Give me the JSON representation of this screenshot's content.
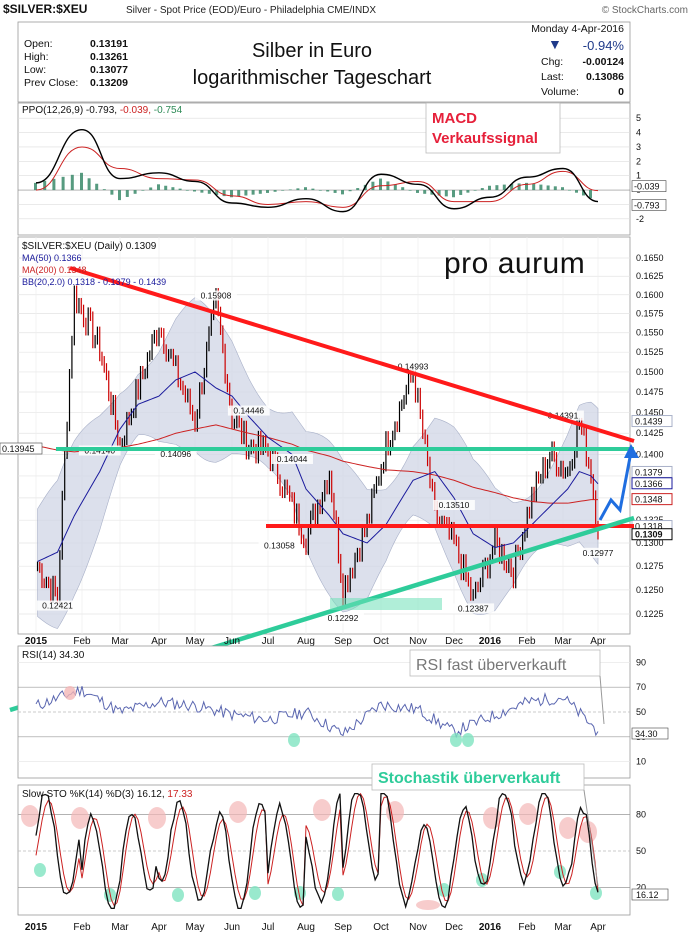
{
  "header": {
    "symbol": "$SILVER:$XEU",
    "description": "Silver - Spot Price (EOD)/Euro - Philadelphia CME/INDX",
    "credit": "© StockCharts.com",
    "date": "Monday 4-Apr-2016",
    "change_pct": "-0.94%",
    "change_label": "Chg:",
    "change": "-0.00124",
    "last_label": "Last:",
    "last": "0.13086",
    "volume_label": "Volume:",
    "volume": "0",
    "ohlc": [
      {
        "label": "Open:",
        "value": "0.13191"
      },
      {
        "label": "High:",
        "value": "0.13261"
      },
      {
        "label": "Low:",
        "value": "0.13077"
      },
      {
        "label": "Prev Close:",
        "value": "0.13209"
      }
    ],
    "title_line1": "Silber in Euro",
    "title_line2": "logarithmischer Tageschart",
    "brand": "pro aurum"
  },
  "colors": {
    "price_up": "#000000",
    "price_down": "#cc0000",
    "ma50": "#1a1a9c",
    "ma200": "#cc2222",
    "bband_fill": "#d0d6e6",
    "resistance": "#ff1a1a",
    "support": "#2ecc9a",
    "annotation": "#e6203a",
    "forecast": "#1f6ee0",
    "rsi_line": "#5a66b0",
    "sto_k": "#111111",
    "sto_d": "#cc2222",
    "macd_hist": "#3a8a6a",
    "ppo_line": "#000000",
    "ppo_signal": "#cc2222"
  },
  "chart_data": [
    {
      "type": "line",
      "panel": "ppo",
      "legend": "PPO(12,26,9) -0.793, -0.039, -0.754",
      "legend_parts": [
        "PPO(12,26,9)",
        " -0.793,",
        " -0.039,",
        " -0.754"
      ],
      "y_ticks": [
        "5",
        "4",
        "3",
        "2",
        "1",
        "0",
        "-1",
        "-2"
      ],
      "ylim": [
        -2.5,
        5.5
      ],
      "x": [
        "2015-01",
        "2015-02",
        "2015-03",
        "2015-04",
        "2015-05",
        "2015-06",
        "2015-07",
        "2015-08",
        "2015-09",
        "2015-10",
        "2015-11",
        "2015-12",
        "2016-01",
        "2016-02",
        "2016-03",
        "2016-04"
      ],
      "series": [
        {
          "name": "PPO",
          "values": [
            0.5,
            4.2,
            0.8,
            1.2,
            0.6,
            -0.9,
            -1.2,
            -0.6,
            -1.5,
            1.1,
            0.4,
            -1.3,
            -0.5,
            0.9,
            1.5,
            -0.8
          ]
        },
        {
          "name": "Signal",
          "values": [
            0.0,
            3.0,
            1.5,
            0.8,
            0.7,
            -0.4,
            -1.0,
            -0.8,
            -1.2,
            0.3,
            0.6,
            -0.8,
            -0.8,
            0.4,
            1.3,
            -0.04
          ]
        }
      ],
      "value_labels": [
        "-0.039",
        "-0.793"
      ],
      "annotation": [
        "MACD",
        "Verkaufssignal"
      ]
    },
    {
      "type": "bar",
      "subtype": "ohlc",
      "panel": "price",
      "scale": "log",
      "legend_title": "$SILVER:$XEU (Daily) 0.1309",
      "legend": [
        "MA(50) 0.1366",
        "MA(200) 0.1348",
        "BB(20,2.0) 0.1318 - 0.1379 - 0.1439"
      ],
      "y_ticks": [
        "0.1650",
        "0.1625",
        "0.1600",
        "0.1575",
        "0.1550",
        "0.1525",
        "0.1500",
        "0.1475",
        "0.1450",
        "0.1425",
        "0.1400",
        "0.1375",
        "0.1350",
        "0.1325",
        "0.1300",
        "0.1275",
        "0.1250",
        "0.1225"
      ],
      "ylim": [
        0.1212,
        0.166
      ],
      "x_ticks": [
        "2015",
        "Feb",
        "Mar",
        "Apr",
        "May",
        "Jun",
        "Jul",
        "Aug",
        "Sep",
        "Oct",
        "Nov",
        "Dec",
        "2016",
        "Feb",
        "Mar",
        "Apr"
      ],
      "x": [
        "2015-01-02",
        "2015-01-15",
        "2015-01-26",
        "2015-02-15",
        "2015-03-01",
        "2015-03-15",
        "2015-04-01",
        "2015-04-15",
        "2015-05-01",
        "2015-05-18",
        "2015-06-01",
        "2015-06-15",
        "2015-07-01",
        "2015-07-20",
        "2015-08-01",
        "2015-08-20",
        "2015-09-01",
        "2015-09-20",
        "2015-10-05",
        "2015-10-27",
        "2015-11-15",
        "2015-12-01",
        "2015-12-17",
        "2016-01-05",
        "2016-01-20",
        "2016-02-05",
        "2016-02-20",
        "2016-03-05",
        "2016-03-15",
        "2016-03-25",
        "2016-04-04"
      ],
      "values": [
        0.1275,
        0.1242,
        0.16,
        0.153,
        0.141,
        0.148,
        0.156,
        0.15,
        0.144,
        0.159,
        0.1445,
        0.141,
        0.1404,
        0.134,
        0.1306,
        0.138,
        0.125,
        0.132,
        0.141,
        0.1499,
        0.133,
        0.13,
        0.1239,
        0.13,
        0.127,
        0.135,
        0.14,
        0.138,
        0.1439,
        0.138,
        0.1309
      ],
      "ma50": [
        0.128,
        0.129,
        0.133,
        0.138,
        0.143,
        0.146,
        0.147,
        0.149,
        0.15,
        0.148,
        0.147,
        0.1445,
        0.142,
        0.14,
        0.136,
        0.133,
        0.131,
        0.13,
        0.132,
        0.137,
        0.138,
        0.135,
        0.131,
        0.1295,
        0.13,
        0.132,
        0.134,
        0.136,
        0.138,
        0.1375,
        0.1366
      ],
      "ma200": [
        0.141,
        0.1405,
        0.1403,
        0.1405,
        0.1408,
        0.1412,
        0.1418,
        0.1425,
        0.143,
        0.1435,
        0.143,
        0.1425,
        0.142,
        0.1412,
        0.1405,
        0.1398,
        0.1392,
        0.1386,
        0.1382,
        0.138,
        0.1376,
        0.137,
        0.1362,
        0.1356,
        0.135,
        0.1346,
        0.1344,
        0.1344,
        0.1346,
        0.1348,
        0.1348
      ],
      "price_labels": [
        {
          "text": "0.12421",
          "x": "2015-01-15",
          "y": 0.1242
        },
        {
          "text": "0.14140",
          "x": "2015-02-15",
          "y": 0.1414
        },
        {
          "text": "0.14096",
          "x": "2015-04-15",
          "y": 0.141
        },
        {
          "text": "0.15908",
          "x": "2015-05-18",
          "y": 0.1591
        },
        {
          "text": "0.14446",
          "x": "2015-06-15",
          "y": 0.1445
        },
        {
          "text": "0.14044",
          "x": "2015-07-20",
          "y": 0.1404
        },
        {
          "text": "0.13058",
          "x": "2015-07-10",
          "y": 0.1306
        },
        {
          "text": "0.12292",
          "x": "2015-09-01",
          "y": 0.1229
        },
        {
          "text": "0.14993",
          "x": "2015-10-27",
          "y": 0.1499
        },
        {
          "text": "0.13510",
          "x": "2015-12-01",
          "y": 0.1351
        },
        {
          "text": "0.12387",
          "x": "2015-12-17",
          "y": 0.1239
        },
        {
          "text": "0.14391",
          "x": "2016-03-01",
          "y": 0.1439
        },
        {
          "text": "0.12977",
          "x": "2016-04-01",
          "y": 0.1298
        }
      ],
      "legend_values": [
        "0.1379",
        "0.1439"
      ],
      "left_label": "0.13945",
      "right_labels": [
        "0.1439",
        "0.1379",
        "0.1366",
        "0.1348",
        "0.1318",
        "0.1309"
      ]
    },
    {
      "type": "line",
      "panel": "rsi",
      "legend": "RSI(14) 34.30",
      "y_ticks": [
        "90",
        "70",
        "50",
        "30",
        "10"
      ],
      "ylim": [
        0,
        100
      ],
      "x": [
        "2015-01",
        "2015-02",
        "2015-03",
        "2015-04",
        "2015-05",
        "2015-06",
        "2015-07",
        "2015-08",
        "2015-09",
        "2015-10",
        "2015-11",
        "2015-12",
        "2016-01",
        "2016-02",
        "2016-03",
        "2016-04"
      ],
      "values": [
        55,
        68,
        50,
        58,
        55,
        48,
        44,
        50,
        32,
        56,
        52,
        34,
        46,
        58,
        62,
        34.3
      ],
      "value_label": "34.30",
      "annotation": "RSI fast überverkauft"
    },
    {
      "type": "line",
      "panel": "stochastic",
      "legend": "Slow STO %K(14) %D(3) 16.12, 17.33",
      "legend_parts": [
        "Slow STO %K(14) %D(3) 16.12,",
        " 17.33"
      ],
      "y_ticks": [
        "80",
        "50",
        "20"
      ],
      "ylim": [
        0,
        100
      ],
      "x_ticks": [
        "2015",
        "Feb",
        "Mar",
        "Apr",
        "May",
        "Jun",
        "Jul",
        "Aug",
        "Sep",
        "Oct",
        "Nov",
        "Dec",
        "2016",
        "Feb",
        "Mar",
        "Apr"
      ],
      "x": [
        "2015-01",
        "2015-02",
        "2015-03",
        "2015-04",
        "2015-05",
        "2015-06",
        "2015-07",
        "2015-08",
        "2015-09",
        "2015-10",
        "2015-11",
        "2015-12",
        "2016-01",
        "2016-02",
        "2016-03",
        "2016-04"
      ],
      "series": [
        {
          "name": "%K",
          "values": [
            85,
            30,
            15,
            80,
            40,
            20,
            60,
            15,
            85,
            90,
            10,
            40,
            75,
            85,
            70,
            16.12
          ]
        },
        {
          "name": "%D",
          "values": [
            80,
            40,
            20,
            75,
            45,
            25,
            55,
            20,
            80,
            88,
            15,
            35,
            70,
            82,
            72,
            17.33
          ]
        }
      ],
      "value_label": "16.12",
      "annotation": "Stochastik überverkauft"
    }
  ]
}
